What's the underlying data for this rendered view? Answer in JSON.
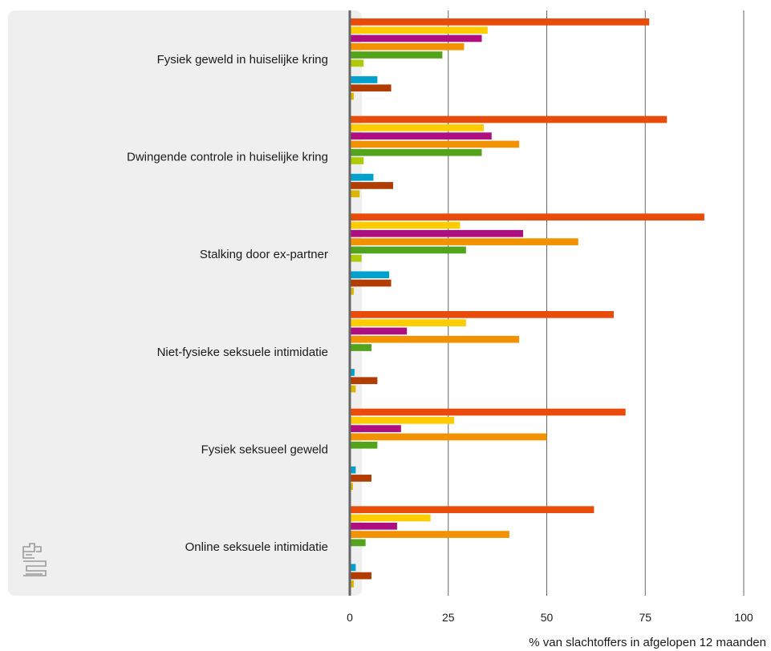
{
  "chart_data": {
    "type": "bar",
    "orientation": "horizontal",
    "categories": [
      "Fysiek geweld in huiselijke kring",
      "Dwingende controle in huiselijke kring",
      "Stalking door ex-partner",
      "Niet-fysieke seksuele intimidatie",
      "Fysiek seksueel geweld",
      "Online seksuele intimidatie"
    ],
    "series": [
      {
        "color": "#e94c0a",
        "values": [
          76,
          80.5,
          90,
          67,
          70,
          62
        ]
      },
      {
        "color": "#ffcc00",
        "values": [
          35,
          34,
          28,
          29.5,
          26.5,
          20.5
        ]
      },
      {
        "color": "#af0e80",
        "values": [
          33.5,
          36,
          44,
          14.5,
          13,
          12
        ]
      },
      {
        "color": "#f39200",
        "values": [
          29,
          43,
          58,
          43,
          50,
          40.5
        ]
      },
      {
        "color": "#53a31d",
        "values": [
          23.5,
          33.5,
          29.5,
          5.5,
          7,
          4
        ]
      },
      {
        "color": "#afcb05",
        "values": [
          3.5,
          3.5,
          3,
          null,
          null,
          null
        ]
      },
      {
        "color": "#0581a2",
        "values": [
          null,
          null,
          null,
          null,
          null,
          null
        ]
      },
      {
        "color": "#00a1cd",
        "values": [
          7,
          6,
          10,
          1.2,
          1.5,
          1.5
        ]
      },
      {
        "color": "#b23d02",
        "values": [
          10.5,
          11,
          10.5,
          7,
          5.5,
          5.5
        ]
      },
      {
        "color": "#d9b600",
        "values": [
          1,
          2.5,
          1,
          1.5,
          0.8,
          1
        ]
      }
    ],
    "xlim": [
      0,
      100
    ],
    "xticks": [
      "0",
      "25",
      "50",
      "75",
      "100"
    ],
    "xlabel": "% van slachtoffers in afgelopen 12 maanden",
    "grid": true
  },
  "logo": {
    "name": "cbs-logo-icon"
  },
  "colors": {
    "panel": "#efefef",
    "grid": "#666666",
    "axis": "#666666"
  }
}
